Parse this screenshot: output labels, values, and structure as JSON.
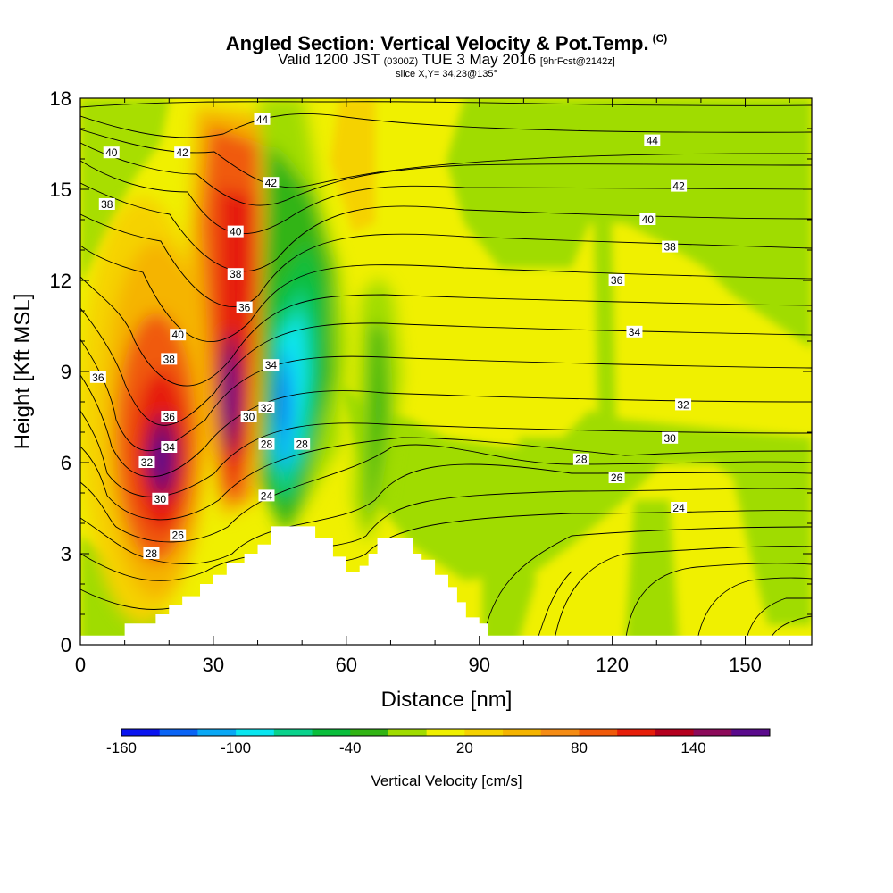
{
  "header": {
    "title": "Angled Section: Vertical Velocity & Pot.Temp.",
    "title_suffix": "(C)",
    "valid_prefix": "Valid 1200 JST",
    "valid_utc": "(0300Z)",
    "valid_date": "TUE 3 May 2016",
    "valid_fcst": "[9hrFcst@2142z]",
    "slice": "slice X,Y= 34,23@135°"
  },
  "chart_data": {
    "type": "heatmap",
    "xlabel": "Distance [nm]",
    "ylabel": "Height [Kft MSL]",
    "xlim": [
      0,
      165
    ],
    "ylim": [
      0,
      18
    ],
    "x_ticks": [
      0,
      30,
      60,
      90,
      120,
      150
    ],
    "y_ticks": [
      0,
      3,
      6,
      9,
      12,
      15,
      18
    ],
    "colorbar": {
      "label": "Vertical Velocity [cm/s]",
      "levels": [
        -160,
        -140,
        -120,
        -100,
        -80,
        -60,
        -40,
        -20,
        0,
        20,
        40,
        60,
        80,
        100,
        120,
        140,
        160
      ],
      "tick_labels": [
        -160,
        -100,
        -40,
        20,
        80,
        140
      ],
      "colors": [
        "#0a14f0",
        "#0a64f5",
        "#0aa8f5",
        "#0ae6f0",
        "#0ad28c",
        "#0abe3c",
        "#32b414",
        "#a0dc00",
        "#f0f000",
        "#f5d200",
        "#f5b400",
        "#f58c14",
        "#f05a0a",
        "#e61e0a",
        "#b4001e",
        "#8c0a5a",
        "#5a0a8c"
      ]
    },
    "velocity_features": [
      {
        "name": "updraft-core-1",
        "x": 18,
        "y": 6,
        "max_cms": 150
      },
      {
        "name": "updraft-core-2",
        "x": 33,
        "y": 8,
        "max_cms": 150
      },
      {
        "name": "downdraft-core",
        "x": 45,
        "y": 8,
        "min_cms": -100
      },
      {
        "name": "downdraft-band",
        "x": 68,
        "y": 7,
        "min_cms": -40
      }
    ],
    "terrain_kft": [
      [
        0,
        0.3
      ],
      [
        10,
        0.7
      ],
      [
        17,
        1.0
      ],
      [
        20,
        1.3
      ],
      [
        23,
        1.6
      ],
      [
        27,
        2.0
      ],
      [
        30,
        2.3
      ],
      [
        33,
        2.7
      ],
      [
        37,
        3.0
      ],
      [
        40,
        3.3
      ],
      [
        43,
        3.9
      ],
      [
        47,
        3.9
      ],
      [
        50,
        3.9
      ],
      [
        53,
        3.5
      ],
      [
        57,
        2.9
      ],
      [
        60,
        2.4
      ],
      [
        63,
        2.6
      ],
      [
        65,
        3.0
      ],
      [
        67,
        3.5
      ],
      [
        73,
        3.5
      ],
      [
        75,
        3.0
      ],
      [
        77,
        2.8
      ],
      [
        80,
        2.3
      ],
      [
        83,
        1.9
      ],
      [
        85,
        1.4
      ],
      [
        87,
        0.9
      ],
      [
        90,
        0.7
      ],
      [
        92,
        0.3
      ],
      [
        165,
        0.3
      ]
    ],
    "theta_labels": [
      {
        "text": "40",
        "x": 7,
        "y": 16.2
      },
      {
        "text": "42",
        "x": 23,
        "y": 16.2
      },
      {
        "text": "44",
        "x": 41,
        "y": 17.3
      },
      {
        "text": "44",
        "x": 129,
        "y": 16.6
      },
      {
        "text": "38",
        "x": 6,
        "y": 14.5
      },
      {
        "text": "42",
        "x": 43,
        "y": 15.2
      },
      {
        "text": "42",
        "x": 135,
        "y": 15.1
      },
      {
        "text": "40",
        "x": 35,
        "y": 13.6
      },
      {
        "text": "40",
        "x": 128,
        "y": 14.0
      },
      {
        "text": "38",
        "x": 35,
        "y": 12.2
      },
      {
        "text": "38",
        "x": 133,
        "y": 13.1
      },
      {
        "text": "36",
        "x": 121,
        "y": 12.0
      },
      {
        "text": "36",
        "x": 37,
        "y": 11.1
      },
      {
        "text": "40",
        "x": 22,
        "y": 10.2
      },
      {
        "text": "34",
        "x": 125,
        "y": 10.3
      },
      {
        "text": "38",
        "x": 20,
        "y": 9.4
      },
      {
        "text": "34",
        "x": 43,
        "y": 9.2
      },
      {
        "text": "36",
        "x": 4,
        "y": 8.8
      },
      {
        "text": "32",
        "x": 42,
        "y": 7.8
      },
      {
        "text": "32",
        "x": 136,
        "y": 7.9
      },
      {
        "text": "36",
        "x": 20,
        "y": 7.5
      },
      {
        "text": "30",
        "x": 38,
        "y": 7.5
      },
      {
        "text": "30",
        "x": 133,
        "y": 6.8
      },
      {
        "text": "34",
        "x": 20,
        "y": 6.5
      },
      {
        "text": "28",
        "x": 42,
        "y": 6.6
      },
      {
        "text": "28",
        "x": 50,
        "y": 6.6
      },
      {
        "text": "28",
        "x": 113,
        "y": 6.1
      },
      {
        "text": "32",
        "x": 15,
        "y": 6.0
      },
      {
        "text": "26",
        "x": 121,
        "y": 5.5
      },
      {
        "text": "30",
        "x": 18,
        "y": 4.8
      },
      {
        "text": "24",
        "x": 42,
        "y": 4.9
      },
      {
        "text": "24",
        "x": 135,
        "y": 4.5
      },
      {
        "text": "26",
        "x": 22,
        "y": 3.6
      },
      {
        "text": "28",
        "x": 16,
        "y": 3.0
      }
    ]
  }
}
